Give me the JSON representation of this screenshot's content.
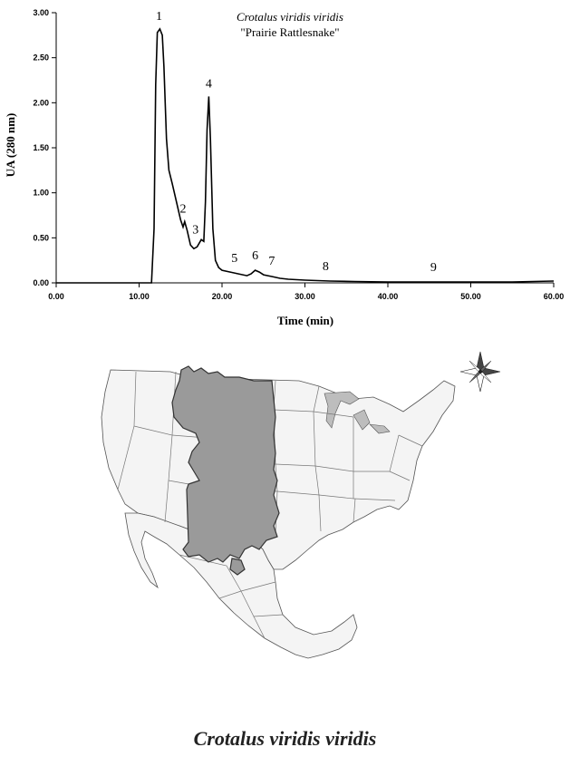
{
  "chart_data": {
    "type": "line",
    "title": "Crotalus viridis viridis",
    "subtitle": "\"Prairie Rattlesnake\"",
    "xlabel": "Time (min)",
    "ylabel": "UA (280 nm)",
    "xlim": [
      0,
      60
    ],
    "ylim": [
      0,
      3
    ],
    "grid": false,
    "x_ticks": [
      "0.00",
      "10.00",
      "20.00",
      "30.00",
      "40.00",
      "50.00",
      "60.00"
    ],
    "y_ticks": [
      "0.00",
      "0.50",
      "1.00",
      "1.50",
      "2.00",
      "2.50",
      "3.00"
    ],
    "series": [
      {
        "x": [
          0,
          11.5,
          11.8,
          12.0,
          12.2,
          12.5,
          12.8,
          13.0,
          13.3,
          13.6,
          14.0,
          14.5,
          15.0,
          15.3,
          15.5,
          15.8,
          16.2,
          16.6,
          17.0,
          17.5,
          17.8,
          18.0,
          18.2,
          18.4,
          18.6,
          18.9,
          19.2,
          19.6,
          20.0,
          21.0,
          22.0,
          23.0,
          23.5,
          24.0,
          24.5,
          25.0,
          26.0,
          27.0,
          28.0,
          30.0,
          33.0,
          36.0,
          40.0,
          45.0,
          50.0,
          55.0,
          60.0
        ],
        "y": [
          0.0,
          0.0,
          0.6,
          2.2,
          2.78,
          2.82,
          2.75,
          2.4,
          1.6,
          1.25,
          1.1,
          0.9,
          0.7,
          0.62,
          0.68,
          0.58,
          0.42,
          0.38,
          0.4,
          0.48,
          0.46,
          0.9,
          1.7,
          2.07,
          1.6,
          0.6,
          0.25,
          0.17,
          0.14,
          0.12,
          0.1,
          0.08,
          0.1,
          0.14,
          0.12,
          0.09,
          0.07,
          0.05,
          0.04,
          0.03,
          0.02,
          0.015,
          0.01,
          0.01,
          0.01,
          0.01,
          0.02
        ]
      }
    ],
    "annotations": [
      {
        "text": "1",
        "x": 12.4,
        "y": 2.82
      },
      {
        "text": "2",
        "x": 15.3,
        "y": 0.68
      },
      {
        "text": "3",
        "x": 16.8,
        "y": 0.45
      },
      {
        "text": "4",
        "x": 18.4,
        "y": 2.07
      },
      {
        "text": "5",
        "x": 21.5,
        "y": 0.13
      },
      {
        "text": "6",
        "x": 24.0,
        "y": 0.16
      },
      {
        "text": "7",
        "x": 26.0,
        "y": 0.1
      },
      {
        "text": "8",
        "x": 32.5,
        "y": 0.04
      },
      {
        "text": "9",
        "x": 45.5,
        "y": 0.03
      }
    ]
  },
  "map": {
    "range_color": "#9a9a9a",
    "compass_icon": "compass-rose-icon"
  },
  "caption": "Crotalus viridis viridis"
}
